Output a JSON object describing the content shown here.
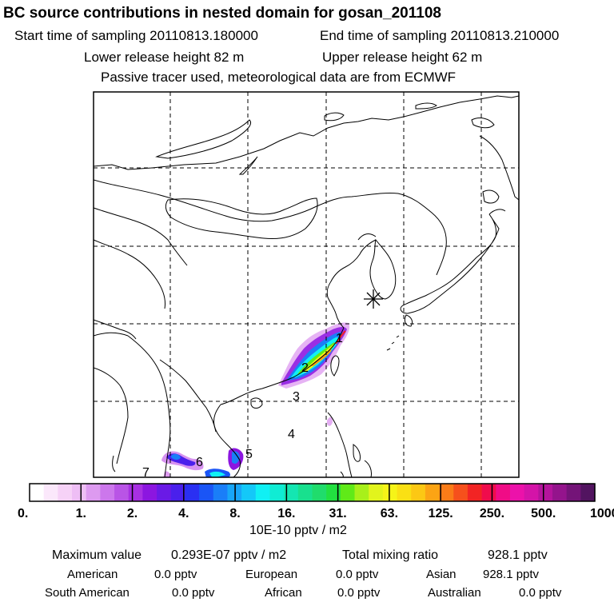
{
  "header": {
    "title": "BC  source contributions in nested domain for gosan_201108",
    "start_label": "Start time of sampling 20110813.180000",
    "end_label": "End time of sampling 20110813.210000",
    "lower_label": "Lower release height   82 m",
    "upper_label": "Upper release height   62 m",
    "note": "Passive tracer used, meteorological data are from ECMWF"
  },
  "map": {
    "region_labels": [
      "1",
      "2",
      "3",
      "4",
      "5",
      "6",
      "7"
    ],
    "receptor_marker": "asterisk-icon",
    "colors": {
      "coast": "#000000",
      "grid": "#000000",
      "frame": "#000000"
    }
  },
  "colorbar": {
    "tick_labels": [
      "0.",
      "1.",
      "2.",
      "4.",
      "8.",
      "16.",
      "31.",
      "63.",
      "125.",
      "250.",
      "500.",
      "1000."
    ],
    "units": "10E-10 pptv / m2",
    "colors": [
      "#ffffff",
      "#fbe8fb",
      "#f6d2f7",
      "#eebef5",
      "#dd9af0",
      "#cc77ec",
      "#b954e6",
      "#a830e2",
      "#8c16e0",
      "#6a1ae6",
      "#4a20ec",
      "#2a30f2",
      "#1a55f6",
      "#1a7ef8",
      "#18a6f8",
      "#14c8f8",
      "#10f0f4",
      "#10ecd4",
      "#14e6b2",
      "#18e08e",
      "#20dc6c",
      "#22e040",
      "#60ea18",
      "#a8f01a",
      "#e2f41c",
      "#f6f418",
      "#fae014",
      "#fcc814",
      "#fca414",
      "#fa7c18",
      "#f6501c",
      "#f22424",
      "#f00c4c",
      "#f00c86",
      "#ec12aa",
      "#d414a8",
      "#b4149c",
      "#94148c",
      "#741478",
      "#521460"
    ]
  },
  "stats": {
    "max_label": "Maximum value",
    "max_value": "0.293E-07 pptv / m2",
    "total_label": "Total mixing ratio",
    "total_value": "928.1 pptv",
    "sources": [
      {
        "name": "American",
        "value": "0.0 pptv"
      },
      {
        "name": "European",
        "value": "0.0 pptv"
      },
      {
        "name": "Asian",
        "value": "928.1 pptv"
      },
      {
        "name": "South American",
        "value": "0.0 pptv"
      },
      {
        "name": "African",
        "value": "0.0 pptv"
      },
      {
        "name": "Australian",
        "value": "0.0 pptv"
      }
    ]
  }
}
